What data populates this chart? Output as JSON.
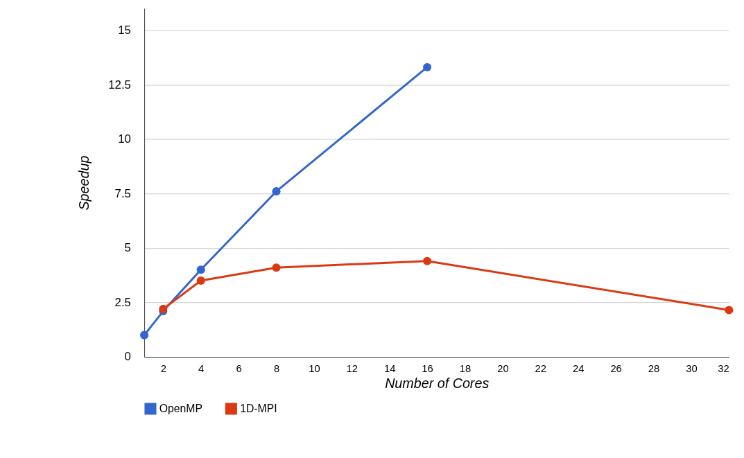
{
  "chart_data": {
    "type": "line",
    "xlabel": "Number of Cores",
    "ylabel": "Speedup",
    "xlim": [
      1,
      32
    ],
    "xticks": [
      2,
      4,
      6,
      8,
      10,
      12,
      14,
      16,
      18,
      20,
      22,
      24,
      26,
      28,
      30,
      32
    ],
    "ylim": [
      0,
      16
    ],
    "yticks": [
      0,
      2.5,
      5,
      7.5,
      10,
      12.5,
      15
    ],
    "grid": "y",
    "legend": "bottom",
    "marker": "circle",
    "line_style": "solid",
    "series": [
      {
        "name": "OpenMP",
        "color": "#3366cc",
        "x": [
          1,
          2,
          4,
          8,
          16
        ],
        "values": [
          1.0,
          2.1,
          4.0,
          7.6,
          13.3
        ]
      },
      {
        "name": "1D-MPI",
        "color": "#dc3912",
        "x": [
          2,
          4,
          8,
          16,
          32
        ],
        "values": [
          2.2,
          3.5,
          4.1,
          4.4,
          2.15
        ]
      }
    ]
  }
}
